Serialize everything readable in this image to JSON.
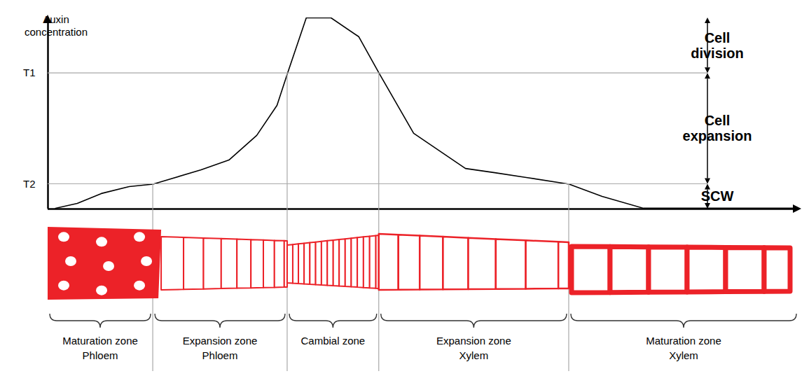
{
  "chart_data": {
    "type": "line",
    "y_label": "Auxin concentration",
    "x": [
      1,
      3.9,
      7.1,
      10.8,
      14,
      20.4,
      24.1,
      27.8,
      30.5,
      31.9,
      34.4,
      37.7,
      41.4,
      44.1,
      48.7,
      55.6,
      59.5,
      63.7,
      69.4,
      73.8,
      79.3,
      100
    ],
    "values": [
      0.4,
      2.9,
      8.1,
      11.7,
      13,
      20.5,
      25.6,
      38.5,
      54.2,
      71,
      100,
      100,
      90.1,
      71,
      39.6,
      21.2,
      19,
      16.5,
      13,
      6.6,
      0.4,
      0.4
    ],
    "color": "#000000",
    "xlim": [
      0,
      100
    ],
    "ylim": [
      0,
      100
    ],
    "yticks": [
      {
        "value": 71,
        "label": "T1"
      },
      {
        "value": 13,
        "label": "T2"
      }
    ],
    "tick_labels": "y",
    "regions": [
      {
        "label": "Cell division",
        "from": 71,
        "to": 100
      },
      {
        "label": "Cell expansion",
        "from": 13,
        "to": 71
      },
      {
        "label": "SCW",
        "from": 0,
        "to": 13
      }
    ]
  },
  "zones": [
    {
      "name": "Maturation zone",
      "tissue": "Phloem",
      "from": 0,
      "to": 14
    },
    {
      "name": "Expansion zone",
      "tissue": "Phloem",
      "from": 14,
      "to": 31.9
    },
    {
      "name": "Cambial zone",
      "from": 31.9,
      "to": 44.1
    },
    {
      "name": "Expansion zone",
      "tissue": "Xylem",
      "from": 44.1,
      "to": 69.4
    },
    {
      "name": "Maturation zone",
      "tissue": "Xylem",
      "from": 69.4,
      "to": 100
    }
  ]
}
